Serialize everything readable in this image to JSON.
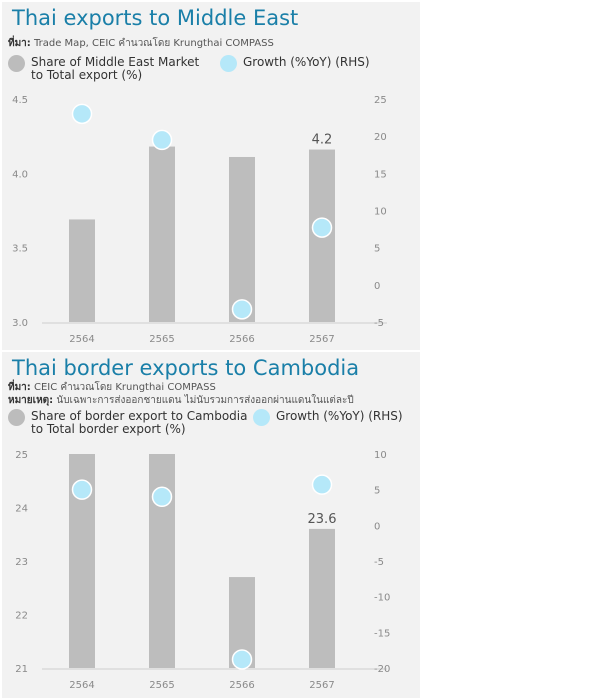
{
  "charts": [
    {
      "title": "Thai exports to Middle East",
      "source_label": "ที่มา:",
      "source_text": "Trade Map, CEIC คำนวณโดย Krungthai COMPASS",
      "note_label": "",
      "note_text": "",
      "legend": {
        "share": "Share of Middle East Market\nto Total export (%)",
        "growth": "Growth (%YoY) (RHS)"
      },
      "colors": {
        "bar": "#bdbdbd",
        "dot": "#b5e8f9",
        "dot_stroke": "#ffffff"
      },
      "chart_data": {
        "type": "bar",
        "categories": [
          "2564",
          "2565",
          "2566",
          "2567"
        ],
        "series": [
          {
            "name": "Share of Middle East Market to Total export (%)",
            "axis": "left",
            "type": "bar",
            "values": [
              3.69,
              4.18,
              4.11,
              4.16
            ]
          },
          {
            "name": "Growth (%YoY) (RHS)",
            "axis": "right",
            "type": "scatter",
            "values": [
              23.0,
              19.5,
              -3.3,
              7.7
            ]
          }
        ],
        "data_labels": [
          {
            "index": 3,
            "text": "4.2"
          }
        ],
        "ylim": [
          3.0,
          4.5
        ],
        "yticks": [
          "3.0",
          "3.5",
          "4.0",
          "4.5"
        ],
        "y2lim": [
          -5,
          25
        ],
        "y2ticks": [
          "-5",
          "0",
          "5",
          "10",
          "15",
          "20",
          "25"
        ],
        "grid": false,
        "legend_position": "top"
      }
    },
    {
      "title": "Thai border exports to Cambodia",
      "source_label": "ที่มา:",
      "source_text": "CEIC คำนวณโดย Krungthai COMPASS",
      "note_label": "หมายเหตุ:",
      "note_text": "นับเฉพาะการส่งออกชายแดน ไม่นับรวมการส่งออกผ่านแดนในแต่ละปี",
      "legend": {
        "share": "Share of border export to Cambodia\nto Total border export (%)",
        "growth": "Growth (%YoY) (RHS)"
      },
      "colors": {
        "bar": "#bdbdbd",
        "dot": "#b5e8f9",
        "dot_stroke": "#ffffff"
      },
      "chart_data": {
        "type": "bar",
        "categories": [
          "2564",
          "2565",
          "2566",
          "2567"
        ],
        "series": [
          {
            "name": "Share of border export to Cambodia to Total border export (%)",
            "axis": "left",
            "type": "bar",
            "values": [
              25.0,
              25.0,
              22.7,
              23.6
            ]
          },
          {
            "name": "Growth (%YoY) (RHS)",
            "axis": "right",
            "type": "scatter",
            "values": [
              5.0,
              4.0,
              -18.8,
              5.7
            ]
          }
        ],
        "data_labels": [
          {
            "index": 3,
            "text": "23.6"
          }
        ],
        "ylim": [
          21,
          25
        ],
        "yticks": [
          "21",
          "22",
          "23",
          "24",
          "25"
        ],
        "y2lim": [
          -20,
          10
        ],
        "y2ticks": [
          "-20",
          "-15",
          "-10",
          "-5",
          "0",
          "5",
          "10"
        ],
        "grid": false,
        "legend_position": "top"
      }
    }
  ]
}
